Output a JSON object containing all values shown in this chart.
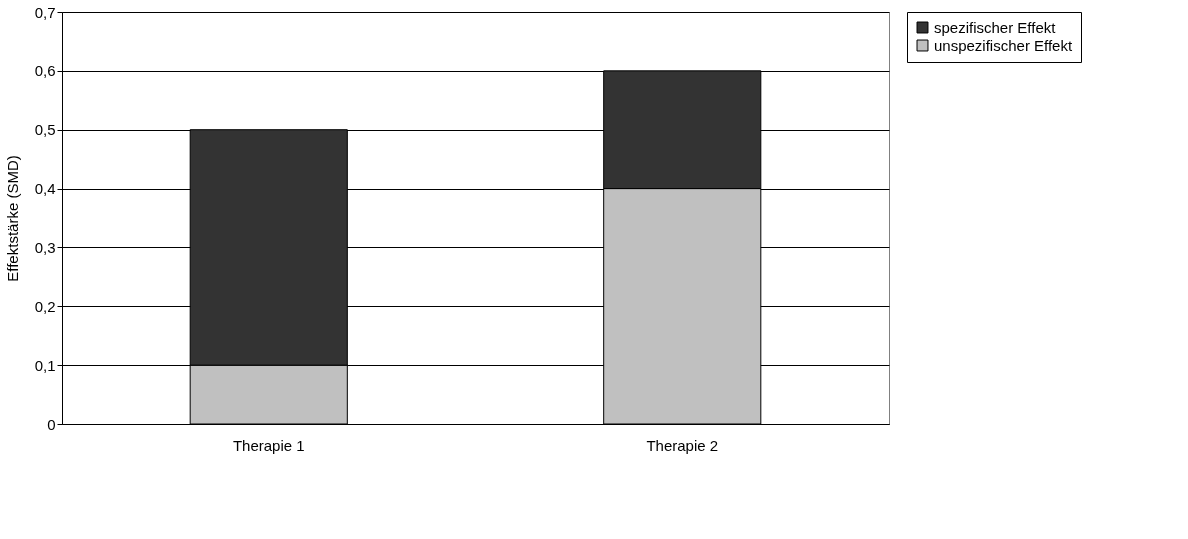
{
  "chart_data": {
    "type": "bar",
    "stacked": true,
    "ylabel": "Effektstärke (SMD)",
    "categories": [
      "Therapie 1",
      "Therapie 2"
    ],
    "series": [
      {
        "name": "unspezifischer Effekt",
        "color": "#c0c0c0",
        "values": [
          0.1,
          0.4
        ]
      },
      {
        "name": "spezifischer Effekt",
        "color": "#333333",
        "values": [
          0.4,
          0.2
        ]
      }
    ],
    "ylim": [
      0,
      0.7
    ],
    "yticks": [
      0,
      {
        "value": 0.1,
        "label": "0,1"
      },
      {
        "value": 0.2,
        "label": "0,2"
      },
      {
        "value": 0.3,
        "label": "0,3"
      },
      {
        "value": 0.4,
        "label": "0,4"
      },
      {
        "value": 0.5,
        "label": "0,5"
      },
      {
        "value": 0.6,
        "label": "0,6"
      },
      {
        "value": 0.7,
        "label": "0,7"
      }
    ],
    "grid": "y",
    "legend": "right"
  }
}
